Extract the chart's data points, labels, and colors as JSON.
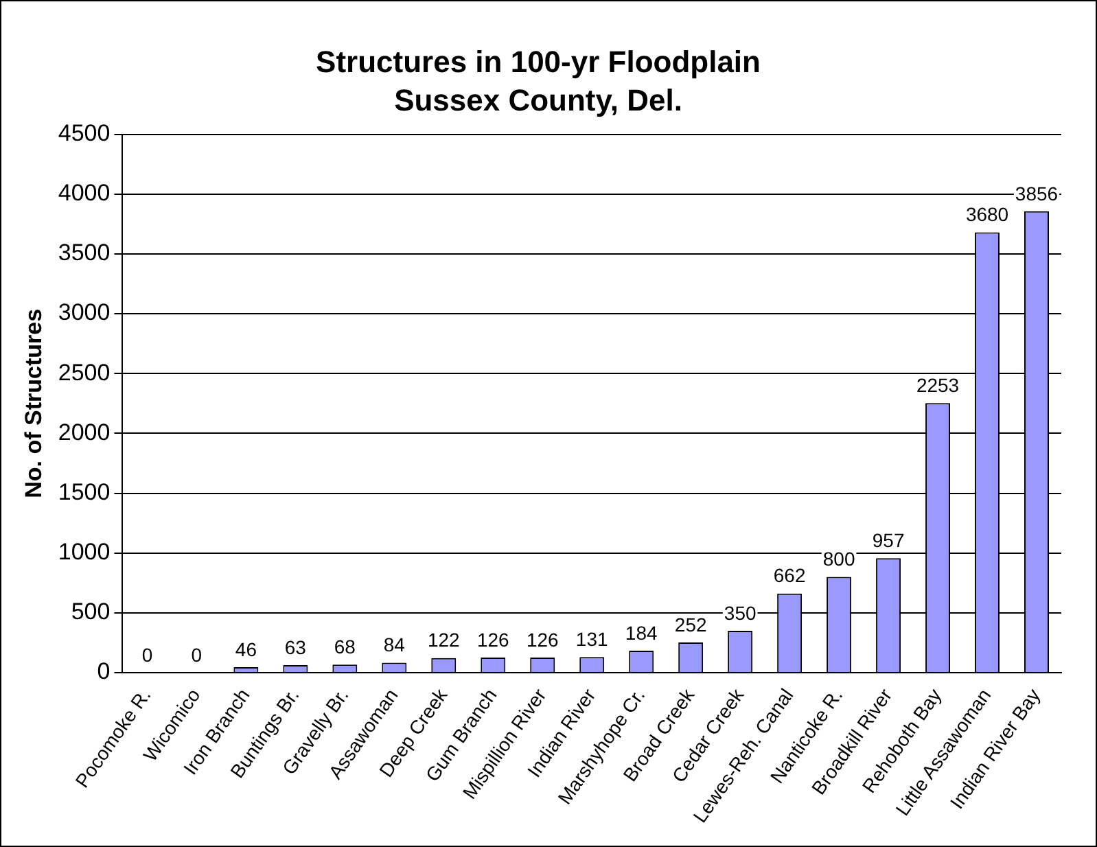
{
  "chart_data": {
    "type": "bar",
    "title": "Structures in 100-yr Floodplain",
    "subtitle": "Sussex County, Del.",
    "ylabel": "No. of Structures",
    "categories": [
      "Pocomoke R.",
      "Wicomico",
      "Iron Branch",
      "Buntings Br.",
      "Gravelly Br.",
      "Assawoman",
      "Deep Creek",
      "Gum Branch",
      "Mispillion River",
      "Indian River",
      "Marshyhope Cr.",
      "Broad Creek",
      "Cedar Creek",
      "Lewes-Reh. Canal",
      "Nanticoke R.",
      "Broadkill River",
      "Rehoboth Bay",
      "Little Assawoman",
      "Indian River Bay"
    ],
    "values": [
      0,
      0,
      46,
      63,
      68,
      84,
      122,
      126,
      126,
      131,
      184,
      252,
      350,
      662,
      800,
      957,
      2253,
      3680,
      3856
    ],
    "color": "#9999ff",
    "ylim": [
      0,
      4500
    ],
    "yticks": [
      0,
      500,
      1000,
      1500,
      2000,
      2500,
      3000,
      3500,
      4000,
      4500
    ],
    "grid": "y",
    "data_labels": true,
    "legend": false
  }
}
